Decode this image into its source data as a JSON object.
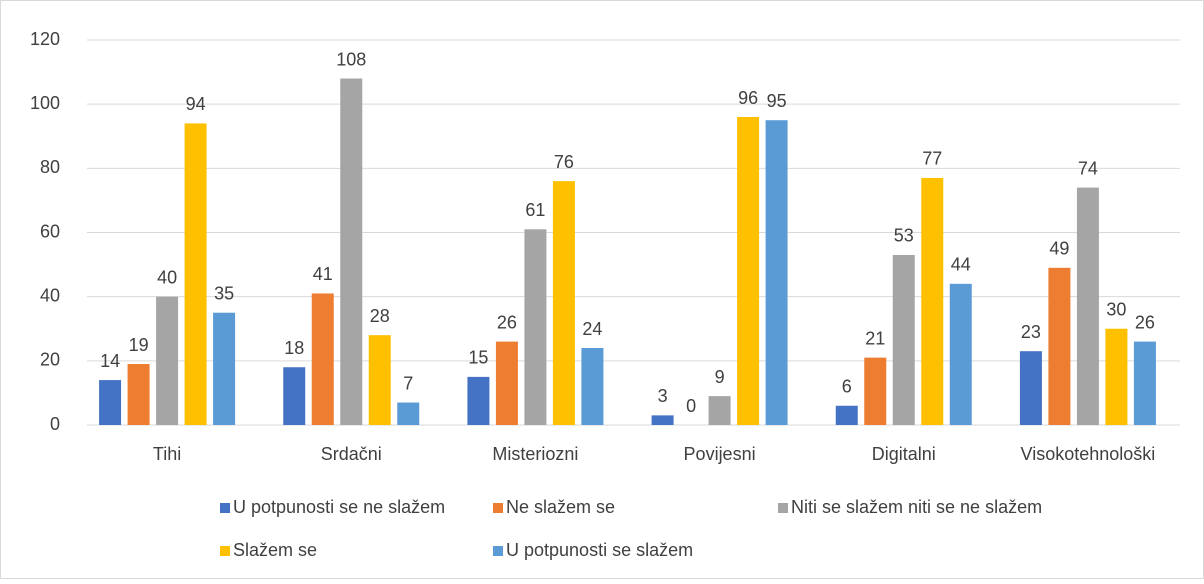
{
  "chart_data": {
    "type": "bar",
    "categories": [
      "Tihi",
      "Srdačni",
      "Misteriozni",
      "Povijesni",
      "Digitalni",
      "Visokotehnološki"
    ],
    "series": [
      {
        "name": "U potpunosti se ne slažem",
        "color": "#4472c4",
        "values": [
          14,
          18,
          15,
          3,
          6,
          23
        ]
      },
      {
        "name": "Ne slažem se",
        "color": "#ed7d31",
        "values": [
          19,
          41,
          26,
          0,
          21,
          49
        ]
      },
      {
        "name": "Niti se slažem niti se ne slažem",
        "color": "#a5a5a5",
        "values": [
          40,
          108,
          61,
          9,
          53,
          74
        ]
      },
      {
        "name": "Slažem se",
        "color": "#ffc000",
        "values": [
          94,
          28,
          76,
          96,
          77,
          30
        ]
      },
      {
        "name": "U potpunosti se slažem",
        "color": "#5b9bd5",
        "values": [
          35,
          7,
          24,
          95,
          44,
          26
        ]
      }
    ],
    "ylim": [
      0,
      120
    ],
    "yticks": [
      0,
      20,
      40,
      60,
      80,
      100,
      120
    ],
    "grid": true,
    "legend": "bottom"
  }
}
